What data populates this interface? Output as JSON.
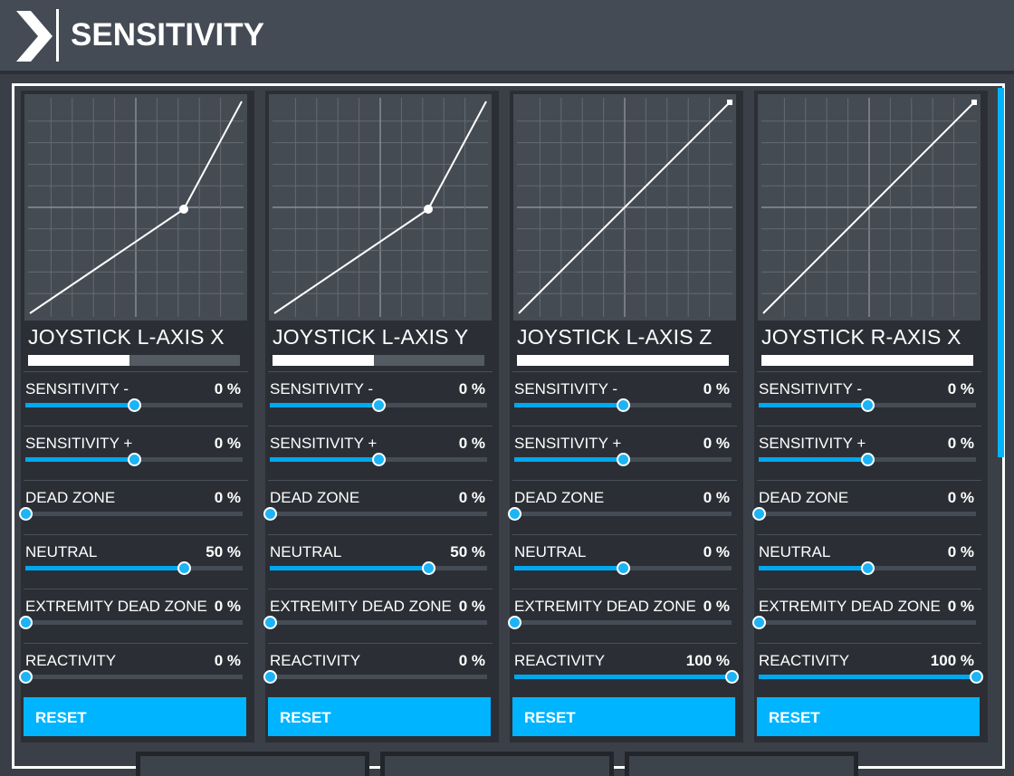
{
  "header": {
    "title": "SENSITIVITY"
  },
  "panels": [
    {
      "name": "JOYSTICK L-AXIS X",
      "axis_fill": 0.48,
      "curve": "bilinear",
      "sliders": [
        {
          "label": "SENSITIVITY -",
          "value": "0 %",
          "pos": 0.5
        },
        {
          "label": "SENSITIVITY +",
          "value": "0 %",
          "pos": 0.5
        },
        {
          "label": "DEAD ZONE",
          "value": "0 %",
          "pos": 0.0
        },
        {
          "label": "NEUTRAL",
          "value": "50 %",
          "pos": 0.73
        },
        {
          "label": "EXTREMITY DEAD ZONE",
          "value": "0 %",
          "pos": 0.0
        },
        {
          "label": "REACTIVITY",
          "value": "0 %",
          "pos": 0.0
        }
      ],
      "reset": "RESET"
    },
    {
      "name": "JOYSTICK L-AXIS Y",
      "axis_fill": 0.48,
      "curve": "bilinear",
      "sliders": [
        {
          "label": "SENSITIVITY -",
          "value": "0 %",
          "pos": 0.5
        },
        {
          "label": "SENSITIVITY +",
          "value": "0 %",
          "pos": 0.5
        },
        {
          "label": "DEAD ZONE",
          "value": "0 %",
          "pos": 0.0
        },
        {
          "label": "NEUTRAL",
          "value": "50 %",
          "pos": 0.73
        },
        {
          "label": "EXTREMITY DEAD ZONE",
          "value": "0 %",
          "pos": 0.0
        },
        {
          "label": "REACTIVITY",
          "value": "0 %",
          "pos": 0.0
        }
      ],
      "reset": "RESET"
    },
    {
      "name": "JOYSTICK L-AXIS Z",
      "axis_fill": 1.0,
      "curve": "linear",
      "sliders": [
        {
          "label": "SENSITIVITY -",
          "value": "0 %",
          "pos": 0.5
        },
        {
          "label": "SENSITIVITY +",
          "value": "0 %",
          "pos": 0.5
        },
        {
          "label": "DEAD ZONE",
          "value": "0 %",
          "pos": 0.0
        },
        {
          "label": "NEUTRAL",
          "value": "0 %",
          "pos": 0.5
        },
        {
          "label": "EXTREMITY DEAD ZONE",
          "value": "0 %",
          "pos": 0.0
        },
        {
          "label": "REACTIVITY",
          "value": "100 %",
          "pos": 1.0
        }
      ],
      "reset": "RESET"
    },
    {
      "name": "JOYSTICK R-AXIS X",
      "axis_fill": 1.0,
      "curve": "linear",
      "sliders": [
        {
          "label": "SENSITIVITY -",
          "value": "0 %",
          "pos": 0.5
        },
        {
          "label": "SENSITIVITY +",
          "value": "0 %",
          "pos": 0.5
        },
        {
          "label": "DEAD ZONE",
          "value": "0 %",
          "pos": 0.0
        },
        {
          "label": "NEUTRAL",
          "value": "0 %",
          "pos": 0.5
        },
        {
          "label": "EXTREMITY DEAD ZONE",
          "value": "0 %",
          "pos": 0.0
        },
        {
          "label": "REACTIVITY",
          "value": "100 %",
          "pos": 1.0
        }
      ],
      "reset": "RESET"
    }
  ],
  "colors": {
    "accent": "#00b4ff",
    "panel_bg": "#2b2f35",
    "graph_bg": "#454b53"
  }
}
